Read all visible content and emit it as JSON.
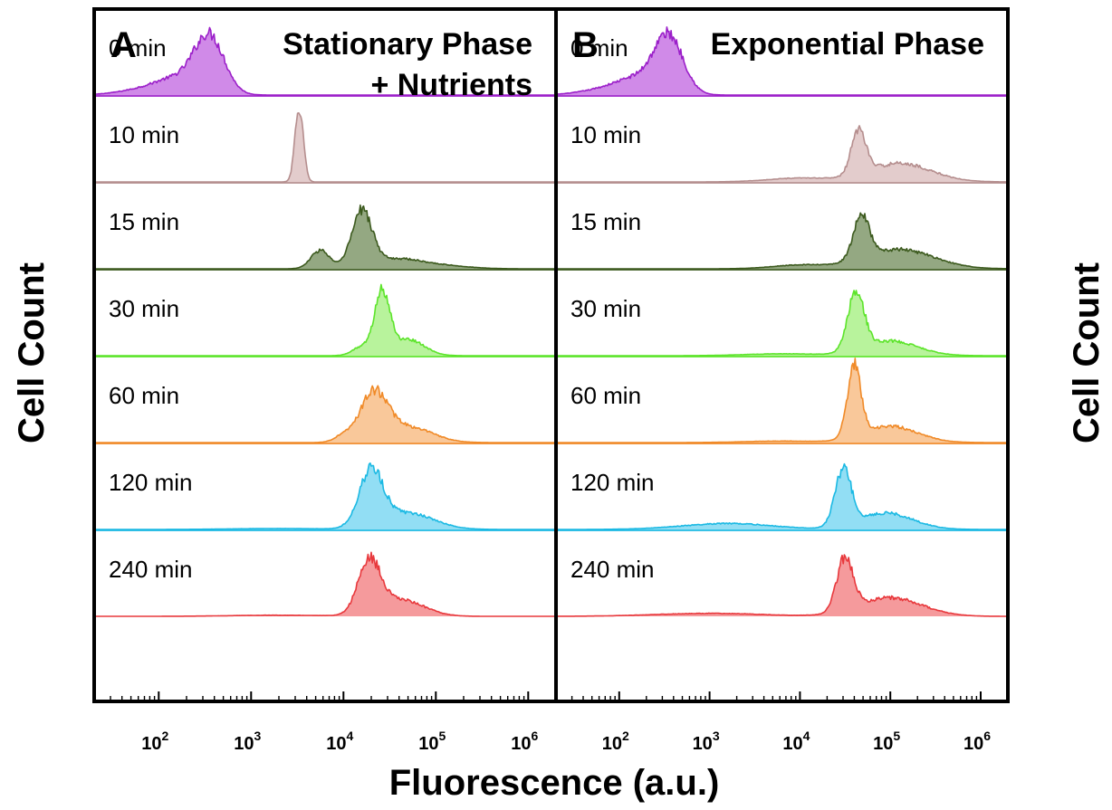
{
  "chart_data": {
    "type": "area",
    "xlabel": "Fluorescence (a.u.)",
    "ylabel": "Cell Count",
    "xscale": "log",
    "xlim": [
      20,
      2000000
    ],
    "xticks": [
      {
        "value": 100,
        "base": "10",
        "exp": "2"
      },
      {
        "value": 1000,
        "base": "10",
        "exp": "3"
      },
      {
        "value": 10000,
        "base": "10",
        "exp": "4"
      },
      {
        "value": 100000,
        "base": "10",
        "exp": "5"
      },
      {
        "value": 1000000,
        "base": "10",
        "exp": "6"
      }
    ],
    "rows": [
      {
        "label": "0 min",
        "color": "#9b1fc9",
        "fill": "#d08ae8"
      },
      {
        "label": "10 min",
        "color": "#b58e8e",
        "fill": "#e3cccc"
      },
      {
        "label": "15 min",
        "color": "#3c5a1e",
        "fill": "#94a882"
      },
      {
        "label": "30 min",
        "color": "#5ce42a",
        "fill": "#b8f39c"
      },
      {
        "label": "60 min",
        "color": "#f08a28",
        "fill": "#f9c89a"
      },
      {
        "label": "120 min",
        "color": "#1bb9e3",
        "fill": "#92def4"
      },
      {
        "label": "240 min",
        "color": "#e8383c",
        "fill": "#f59a9c"
      }
    ],
    "panels": [
      {
        "letter": "A",
        "title_lines": [
          "Stationary Phase",
          "+ Nutrients"
        ],
        "series": [
          {
            "name": "0 min",
            "peaks": [
              {
                "mu": 2.55,
                "sigma": 0.16,
                "amp": 0.75
              },
              {
                "mu": 2.2,
                "sigma": 0.25,
                "amp": 0.22
              },
              {
                "mu": 1.75,
                "sigma": 0.25,
                "amp": 0.05
              }
            ]
          },
          {
            "name": "10 min",
            "peaks": [
              {
                "mu": 3.52,
                "sigma": 0.045,
                "amp": 1.0
              }
            ]
          },
          {
            "name": "15 min",
            "peaks": [
              {
                "mu": 4.2,
                "sigma": 0.11,
                "amp": 0.75
              },
              {
                "mu": 3.75,
                "sigma": 0.1,
                "amp": 0.25
              },
              {
                "mu": 4.55,
                "sigma": 0.25,
                "amp": 0.12
              },
              {
                "mu": 5.0,
                "sigma": 0.3,
                "amp": 0.05
              }
            ]
          },
          {
            "name": "30 min",
            "peaks": [
              {
                "mu": 4.42,
                "sigma": 0.08,
                "amp": 0.85
              },
              {
                "mu": 4.7,
                "sigma": 0.17,
                "amp": 0.22
              },
              {
                "mu": 4.2,
                "sigma": 0.1,
                "amp": 0.12
              }
            ]
          },
          {
            "name": "60 min",
            "peaks": [
              {
                "mu": 4.33,
                "sigma": 0.15,
                "amp": 0.65
              },
              {
                "mu": 4.72,
                "sigma": 0.25,
                "amp": 0.2
              },
              {
                "mu": 4.0,
                "sigma": 0.1,
                "amp": 0.08
              }
            ]
          },
          {
            "name": "120 min",
            "peaks": [
              {
                "mu": 4.3,
                "sigma": 0.13,
                "amp": 0.75
              },
              {
                "mu": 4.7,
                "sigma": 0.28,
                "amp": 0.22
              },
              {
                "mu": 3.3,
                "sigma": 0.5,
                "amp": 0.012
              }
            ]
          },
          {
            "name": "240 min",
            "peaks": [
              {
                "mu": 4.28,
                "sigma": 0.12,
                "amp": 0.7
              },
              {
                "mu": 4.62,
                "sigma": 0.25,
                "amp": 0.22
              },
              {
                "mu": 3.3,
                "sigma": 0.5,
                "amp": 0.015
              }
            ]
          }
        ]
      },
      {
        "letter": "B",
        "title_lines": [
          "Exponential Phase"
        ],
        "series": [
          {
            "name": "0 min",
            "peaks": [
              {
                "mu": 2.55,
                "sigma": 0.16,
                "amp": 0.75
              },
              {
                "mu": 2.2,
                "sigma": 0.25,
                "amp": 0.22
              },
              {
                "mu": 1.75,
                "sigma": 0.25,
                "amp": 0.05
              }
            ]
          },
          {
            "name": "10 min",
            "peaks": [
              {
                "mu": 4.65,
                "sigma": 0.08,
                "amp": 0.6
              },
              {
                "mu": 5.1,
                "sigma": 0.35,
                "amp": 0.25
              },
              {
                "mu": 4.0,
                "sigma": 0.35,
                "amp": 0.05
              }
            ]
          },
          {
            "name": "15 min",
            "peaks": [
              {
                "mu": 4.68,
                "sigma": 0.09,
                "amp": 0.58
              },
              {
                "mu": 5.1,
                "sigma": 0.38,
                "amp": 0.26
              },
              {
                "mu": 4.0,
                "sigma": 0.3,
                "amp": 0.05
              }
            ]
          },
          {
            "name": "30 min",
            "peaks": [
              {
                "mu": 4.62,
                "sigma": 0.09,
                "amp": 0.78
              },
              {
                "mu": 5.0,
                "sigma": 0.3,
                "amp": 0.2
              },
              {
                "mu": 3.8,
                "sigma": 0.4,
                "amp": 0.025
              }
            ]
          },
          {
            "name": "60 min",
            "peaks": [
              {
                "mu": 4.6,
                "sigma": 0.075,
                "amp": 0.95
              },
              {
                "mu": 5.0,
                "sigma": 0.3,
                "amp": 0.22
              },
              {
                "mu": 3.8,
                "sigma": 0.4,
                "amp": 0.02
              }
            ]
          },
          {
            "name": "120 min",
            "peaks": [
              {
                "mu": 4.48,
                "sigma": 0.09,
                "amp": 0.75
              },
              {
                "mu": 4.95,
                "sigma": 0.3,
                "amp": 0.22
              },
              {
                "mu": 3.2,
                "sigma": 0.5,
                "amp": 0.08
              }
            ]
          },
          {
            "name": "240 min",
            "peaks": [
              {
                "mu": 4.5,
                "sigma": 0.09,
                "amp": 0.72
              },
              {
                "mu": 5.0,
                "sigma": 0.35,
                "amp": 0.25
              },
              {
                "mu": 3.0,
                "sigma": 0.6,
                "amp": 0.04
              }
            ]
          }
        ]
      }
    ]
  }
}
